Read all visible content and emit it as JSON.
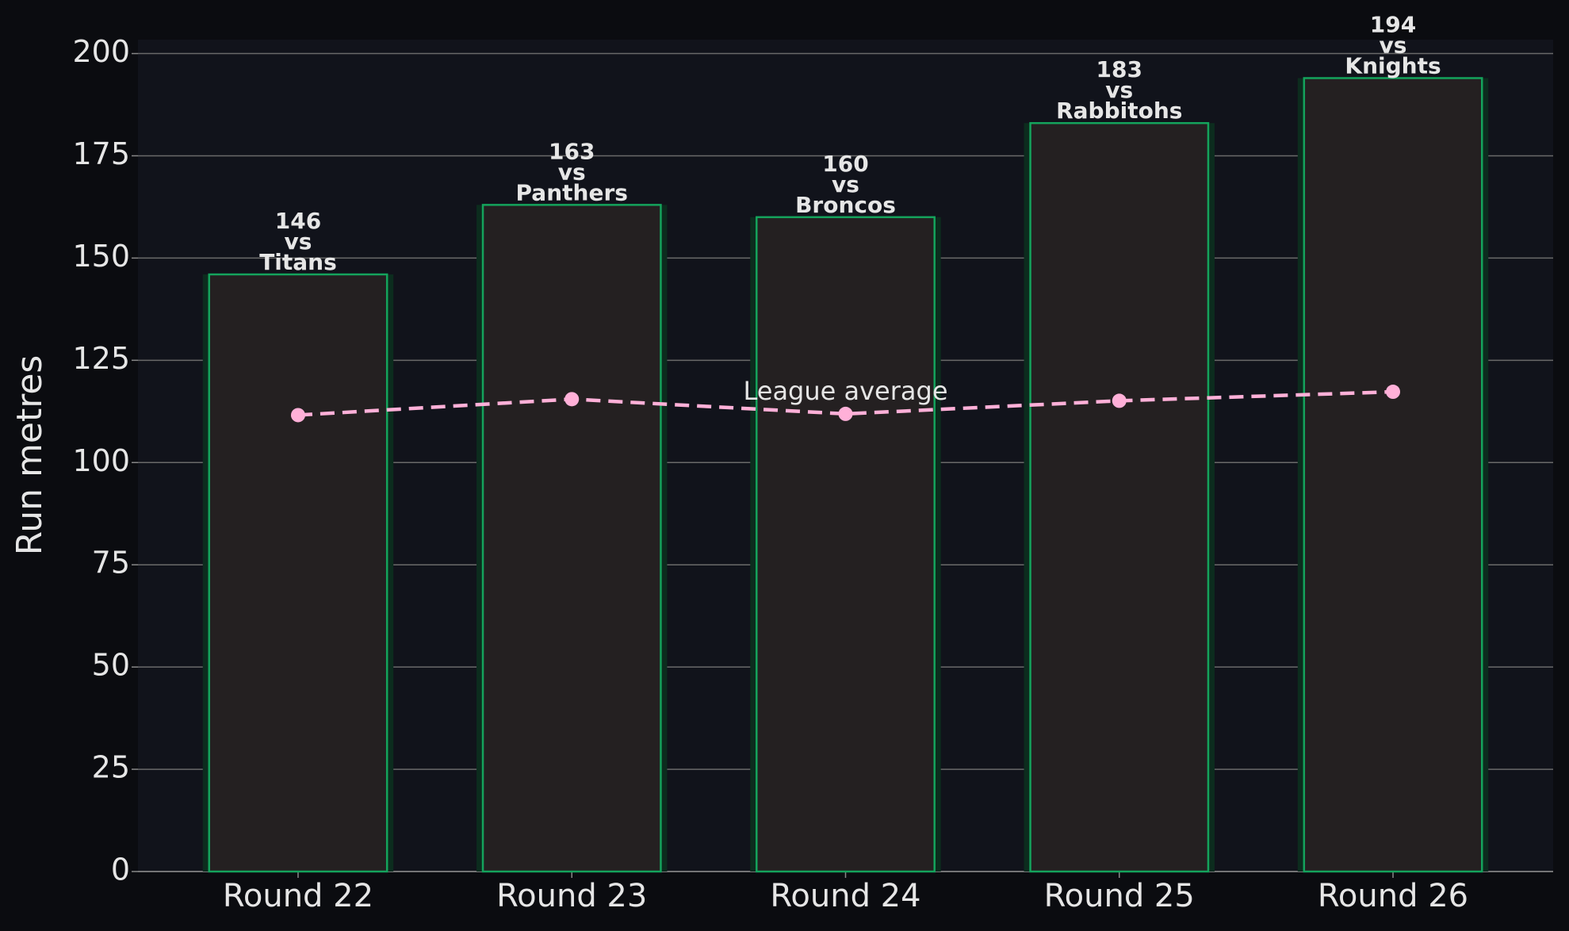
{
  "chart_data": {
    "type": "bar",
    "ylabel": "Run metres",
    "categories": [
      "Round 22",
      "Round 23",
      "Round 24",
      "Round 25",
      "Round 26"
    ],
    "values": [
      146,
      163,
      160,
      183,
      194
    ],
    "value_labels": [
      "146\nvs\nTitans",
      "163\nvs\nPanthers",
      "160\nvs\nBroncos",
      "183\nvs\nRabbitohs",
      "194\nvs\nKnights"
    ],
    "color": "#242021",
    "edgecolor": "#14a35c",
    "line_series": {
      "name": "League average",
      "color": "#ffb0d8",
      "values": [
        111.6,
        115.5,
        111.9,
        115.1,
        117.3
      ]
    },
    "ylim": [
      0,
      203.4
    ],
    "yticks": [
      0,
      25,
      50,
      75,
      100,
      125,
      150,
      175,
      200
    ],
    "grid": true
  }
}
